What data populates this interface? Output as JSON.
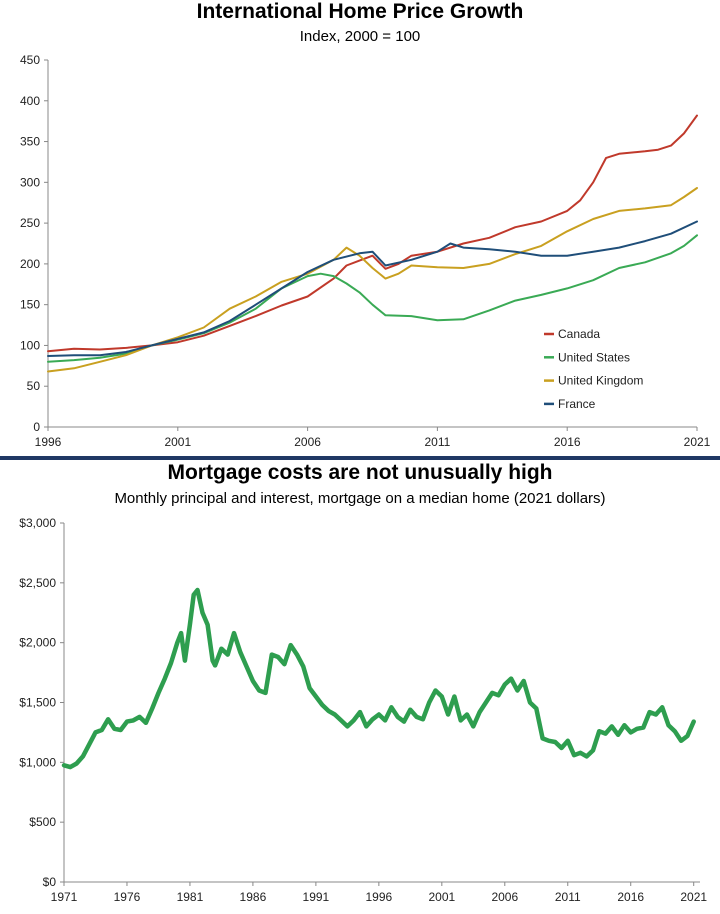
{
  "charts": [
    {
      "title": "International Home Price Growth",
      "subtitle": "Index, 2000 = 100"
    },
    {
      "title": "Mortgage costs are not unusually high",
      "subtitle": "Monthly principal and interest, mortgage on a median home (2021 dollars)"
    }
  ],
  "chart_data": [
    {
      "type": "line",
      "title": "International Home Price Growth",
      "subtitle": "Index, 2000 = 100",
      "xlabel": "",
      "ylabel": "",
      "xlim": [
        1996,
        2021
      ],
      "ylim": [
        0,
        450
      ],
      "y_ticks": [
        "0",
        "50",
        "100",
        "150",
        "200",
        "250",
        "300",
        "350",
        "400",
        "450"
      ],
      "y_tick_values": [
        0,
        50,
        100,
        150,
        200,
        250,
        300,
        350,
        400,
        450
      ],
      "x_ticks": [
        "1996",
        "2001",
        "2006",
        "2011",
        "2016",
        "2021"
      ],
      "x_tick_values": [
        1996,
        2001,
        2006,
        2011,
        2016,
        2021
      ],
      "grid": false,
      "legend_position": "bottom-right",
      "series": [
        {
          "name": "Canada",
          "color": "#c0392b",
          "x": [
            1996,
            1997,
            1998,
            1999,
            2000,
            2001,
            2002,
            2003,
            2004,
            2005,
            2006,
            2007,
            2007.5,
            2008,
            2008.5,
            2009,
            2009.5,
            2010,
            2011,
            2012,
            2013,
            2014,
            2015,
            2016,
            2016.5,
            2017,
            2017.5,
            2018,
            2019,
            2019.5,
            2020,
            2020.5,
            2021
          ],
          "y": [
            93,
            96,
            95,
            97,
            100,
            104,
            112,
            124,
            136,
            149,
            160,
            182,
            198,
            204,
            210,
            194,
            200,
            210,
            215,
            225,
            232,
            245,
            252,
            265,
            278,
            300,
            330,
            335,
            338,
            340,
            345,
            360,
            382
          ]
        },
        {
          "name": "United States",
          "color": "#3aaa55",
          "x": [
            1996,
            1997,
            1998,
            1999,
            2000,
            2001,
            2002,
            2003,
            2004,
            2005,
            2006,
            2006.5,
            2007,
            2007.5,
            2008,
            2008.5,
            2009,
            2010,
            2011,
            2012,
            2013,
            2014,
            2015,
            2016,
            2017,
            2018,
            2019,
            2020,
            2020.5,
            2021
          ],
          "y": [
            80,
            82,
            85,
            90,
            100,
            107,
            115,
            128,
            145,
            170,
            185,
            188,
            185,
            176,
            165,
            150,
            137,
            136,
            131,
            132,
            143,
            155,
            162,
            170,
            180,
            195,
            202,
            213,
            222,
            235
          ]
        },
        {
          "name": "United Kingdom",
          "color": "#c9a020",
          "x": [
            1996,
            1997,
            1998,
            1999,
            2000,
            2001,
            2002,
            2003,
            2004,
            2005,
            2006,
            2007,
            2007.5,
            2008,
            2008.5,
            2009,
            2009.5,
            2010,
            2011,
            2012,
            2013,
            2014,
            2015,
            2016,
            2017,
            2018,
            2019,
            2020,
            2020.5,
            2021
          ],
          "y": [
            68,
            72,
            80,
            88,
            100,
            110,
            122,
            145,
            160,
            178,
            188,
            205,
            220,
            210,
            195,
            182,
            188,
            198,
            196,
            195,
            200,
            212,
            222,
            240,
            255,
            265,
            268,
            272,
            282,
            293
          ]
        },
        {
          "name": "France",
          "color": "#1f4e79",
          "x": [
            1996,
            1997,
            1998,
            1999,
            2000,
            2001,
            2002,
            2003,
            2004,
            2005,
            2006,
            2007,
            2008,
            2008.5,
            2009,
            2010,
            2011,
            2011.5,
            2012,
            2013,
            2014,
            2015,
            2016,
            2017,
            2018,
            2019,
            2020,
            2021
          ],
          "y": [
            87,
            88,
            88,
            92,
            100,
            108,
            116,
            130,
            150,
            170,
            190,
            205,
            213,
            215,
            198,
            205,
            215,
            225,
            220,
            218,
            215,
            210,
            210,
            215,
            220,
            228,
            237,
            252
          ]
        }
      ]
    },
    {
      "type": "line",
      "title": "Mortgage costs are not unusually high",
      "subtitle": "Monthly principal and interest, mortgage on a median home (2021 dollars)",
      "xlabel": "",
      "ylabel": "",
      "xlim": [
        1971,
        2021.5
      ],
      "ylim": [
        0,
        3000
      ],
      "y_ticks": [
        "$0",
        "$500",
        "$1,000",
        "$1,500",
        "$2,000",
        "$2,500",
        "$3,000"
      ],
      "y_tick_values": [
        0,
        500,
        1000,
        1500,
        2000,
        2500,
        3000
      ],
      "x_ticks": [
        "1971",
        "1976",
        "1981",
        "1986",
        "1991",
        "1996",
        "2001",
        "2006",
        "2011",
        "2016",
        "2021"
      ],
      "x_tick_values": [
        1971,
        1976,
        1981,
        1986,
        1991,
        1996,
        2001,
        2006,
        2011,
        2016,
        2021
      ],
      "grid": false,
      "series": [
        {
          "color": "#2e9e4f",
          "x": [
            1971,
            1971.5,
            1972,
            1972.5,
            1973,
            1973.5,
            1974,
            1974.5,
            1975,
            1975.5,
            1976,
            1976.5,
            1977,
            1977.5,
            1978,
            1978.5,
            1979,
            1979.5,
            1980,
            1980.3,
            1980.6,
            1981,
            1981.3,
            1981.6,
            1982,
            1982.4,
            1982.8,
            1983,
            1983.5,
            1984,
            1984.5,
            1985,
            1985.5,
            1986,
            1986.5,
            1987,
            1987.5,
            1988,
            1988.5,
            1989,
            1989.5,
            1990,
            1990.5,
            1991,
            1991.5,
            1992,
            1992.5,
            1993,
            1993.5,
            1994,
            1994.5,
            1995,
            1995.5,
            1996,
            1996.5,
            1997,
            1997.5,
            1998,
            1998.5,
            1999,
            1999.5,
            2000,
            2000.5,
            2001,
            2001.5,
            2002,
            2002.5,
            2003,
            2003.5,
            2004,
            2004.5,
            2005,
            2005.5,
            2006,
            2006.5,
            2007,
            2007.5,
            2008,
            2008.5,
            2009,
            2009.5,
            2010,
            2010.5,
            2011,
            2011.5,
            2012,
            2012.5,
            2013,
            2013.5,
            2014,
            2014.5,
            2015,
            2015.5,
            2016,
            2016.5,
            2017,
            2017.5,
            2018,
            2018.5,
            2019,
            2019.5,
            2020,
            2020.5,
            2021
          ],
          "y": [
            975,
            960,
            990,
            1050,
            1150,
            1250,
            1270,
            1360,
            1280,
            1270,
            1340,
            1350,
            1380,
            1330,
            1450,
            1580,
            1700,
            1830,
            2000,
            2080,
            1850,
            2150,
            2400,
            2440,
            2250,
            2150,
            1850,
            1810,
            1950,
            1900,
            2080,
            1920,
            1800,
            1680,
            1600,
            1580,
            1900,
            1880,
            1820,
            1980,
            1900,
            1800,
            1620,
            1550,
            1480,
            1430,
            1400,
            1350,
            1300,
            1350,
            1420,
            1300,
            1360,
            1400,
            1350,
            1460,
            1380,
            1340,
            1440,
            1380,
            1360,
            1500,
            1600,
            1550,
            1400,
            1550,
            1350,
            1400,
            1300,
            1420,
            1500,
            1580,
            1560,
            1650,
            1700,
            1600,
            1680,
            1500,
            1450,
            1200,
            1180,
            1170,
            1120,
            1180,
            1060,
            1080,
            1050,
            1100,
            1260,
            1240,
            1300,
            1230,
            1310,
            1250,
            1280,
            1290,
            1420,
            1400,
            1460,
            1310,
            1260,
            1180,
            1220,
            1340
          ]
        }
      ],
      "annotations": []
    }
  ]
}
